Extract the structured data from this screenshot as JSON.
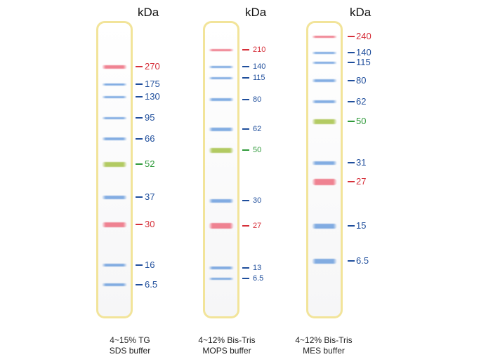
{
  "colors": {
    "blue": "#1f4e9c",
    "red": "#d6303a",
    "green": "#2f9a3a"
  },
  "ladders": [
    {
      "unit": "kDa",
      "caption_line1": "4~15% TG",
      "caption_line2": "SDS buffer",
      "bands": [
        {
          "label": "270",
          "color": "red"
        },
        {
          "label": "175",
          "color": "blue"
        },
        {
          "label": "130",
          "color": "blue"
        },
        {
          "label": "95",
          "color": "blue"
        },
        {
          "label": "66",
          "color": "blue"
        },
        {
          "label": "52",
          "color": "green"
        },
        {
          "label": "37",
          "color": "blue"
        },
        {
          "label": "30",
          "color": "red"
        },
        {
          "label": "16",
          "color": "blue"
        },
        {
          "label": "6.5",
          "color": "blue"
        }
      ]
    },
    {
      "unit": "kDa",
      "caption_line1": "4~12% Bis-Tris",
      "caption_line2": "MOPS buffer",
      "bands": [
        {
          "label": "210",
          "color": "red"
        },
        {
          "label": "140",
          "color": "blue"
        },
        {
          "label": "115",
          "color": "blue"
        },
        {
          "label": "80",
          "color": "blue"
        },
        {
          "label": "62",
          "color": "blue"
        },
        {
          "label": "50",
          "color": "green"
        },
        {
          "label": "30",
          "color": "blue"
        },
        {
          "label": "27",
          "color": "red"
        },
        {
          "label": "13",
          "color": "blue"
        },
        {
          "label": "6.5",
          "color": "blue"
        }
      ]
    },
    {
      "unit": "kDa",
      "caption_line1": "4~12% Bis-Tris",
      "caption_line2": "MES buffer",
      "bands": [
        {
          "label": "240",
          "color": "red"
        },
        {
          "label": "140",
          "color": "blue"
        },
        {
          "label": "115",
          "color": "blue"
        },
        {
          "label": "80",
          "color": "blue"
        },
        {
          "label": "62",
          "color": "blue"
        },
        {
          "label": "50",
          "color": "green"
        },
        {
          "label": "31",
          "color": "blue"
        },
        {
          "label": "27",
          "color": "red"
        },
        {
          "label": "15",
          "color": "blue"
        },
        {
          "label": "6.5",
          "color": "blue"
        }
      ]
    }
  ]
}
